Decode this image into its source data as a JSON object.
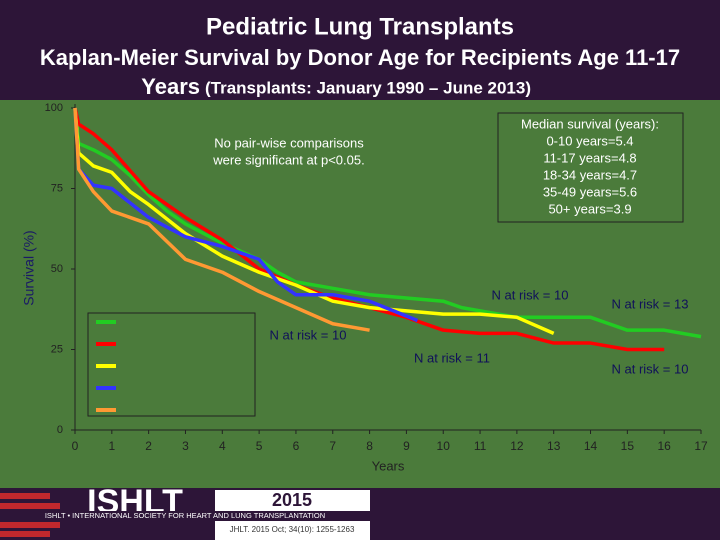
{
  "chart_data": {
    "type": "line",
    "title": "Pediatric Lung Transplants",
    "subtitle": "Kaplan-Meier Survival by Donor Age for Recipients Age 11-17",
    "subtitle_years": "Years",
    "subtitle_period": "(Transplants: January 1990 – June 2013)",
    "x_label": "Years",
    "y_label": "Survival (%)",
    "xlim": [
      0,
      17
    ],
    "xticks": [
      0,
      1,
      2,
      3,
      4,
      5,
      6,
      7,
      8,
      9,
      10,
      11,
      12,
      13,
      14,
      15,
      16,
      17
    ],
    "ylim": [
      0,
      100
    ],
    "yticks": [
      0,
      25,
      50,
      75,
      100
    ],
    "series": [
      {
        "color": "#22cc22",
        "x": [
          0,
          0.1,
          0.5,
          1,
          1.5,
          2,
          2.5,
          3,
          4,
          5,
          5.5,
          6,
          7,
          8,
          9,
          10,
          10.5,
          11,
          12,
          13,
          14,
          14.5,
          15,
          16,
          17
        ],
        "values": [
          100,
          89,
          87,
          84,
          79,
          73,
          68,
          64,
          58,
          53,
          49,
          46,
          44,
          42,
          41,
          40,
          38,
          37,
          35,
          35,
          35,
          33,
          31,
          31,
          29
        ]
      },
      {
        "color": "#ff0000",
        "x": [
          0,
          0.1,
          0.5,
          1,
          2,
          3,
          4,
          5,
          6,
          7,
          8,
          9,
          10,
          11,
          12,
          13,
          14,
          15,
          16
        ],
        "values": [
          100,
          95,
          92,
          87,
          74,
          66,
          59,
          50,
          45,
          41,
          38,
          35,
          31,
          30,
          30,
          27,
          27,
          25,
          25
        ]
      },
      {
        "color": "#ffff00",
        "x": [
          0,
          0.1,
          0.5,
          1,
          1.5,
          2,
          3,
          4,
          5,
          6,
          7,
          8,
          9,
          10,
          11,
          12,
          13
        ],
        "values": [
          100,
          86,
          82,
          80,
          74,
          70,
          61,
          54,
          49,
          45,
          40,
          38,
          37,
          36,
          36,
          35,
          30
        ]
      },
      {
        "color": "#3333ff",
        "x": [
          0,
          0.1,
          0.5,
          1,
          2,
          3,
          4,
          5,
          5.5,
          6,
          7,
          8,
          9.3
        ],
        "values": [
          100,
          81,
          76,
          75,
          66,
          60,
          57,
          53,
          46,
          42,
          42,
          40,
          34
        ]
      },
      {
        "color": "#ff9933",
        "x": [
          0,
          0.1,
          0.5,
          1,
          2,
          3,
          4,
          5,
          6,
          7,
          8
        ],
        "values": [
          100,
          81,
          74,
          68,
          64,
          53,
          49,
          43,
          38,
          33,
          31
        ]
      }
    ],
    "note": [
      "No pair-wise comparisons",
      "were significant at p<0.05."
    ],
    "median_box": [
      "Median survival (years):",
      "0-10 years=5.4",
      "11-17 years=4.8",
      "18-34 years=4.7",
      "35-49 years=5.6",
      "50+ years=3.9"
    ],
    "n_at_risk": [
      "N at risk = 10",
      "N at risk = 13",
      "N at risk = 10",
      "N at risk = 11",
      "N at risk = 10"
    ]
  },
  "footer": {
    "logo": "ISHLT",
    "society": "ISHLT • INTERNATIONAL SOCIETY FOR HEART AND LUNG TRANSPLANTATION",
    "year": "2015",
    "citation": "JHLT. 2015 Oct; 34(10): 1255-1263"
  }
}
